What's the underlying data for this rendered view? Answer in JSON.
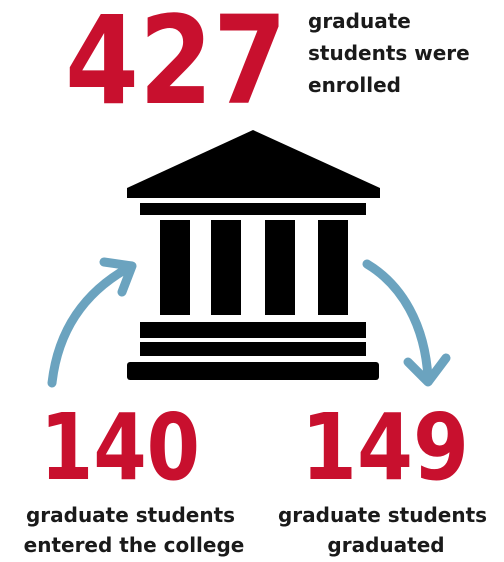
{
  "enrolled": {
    "number": 427,
    "lines": [
      "graduate",
      "students were",
      "enrolled"
    ]
  },
  "entered": {
    "number": 140,
    "lines": [
      "graduate students",
      "entered the college"
    ]
  },
  "graduated": {
    "number": 149,
    "lines": [
      "graduate students",
      "graduated"
    ]
  }
}
